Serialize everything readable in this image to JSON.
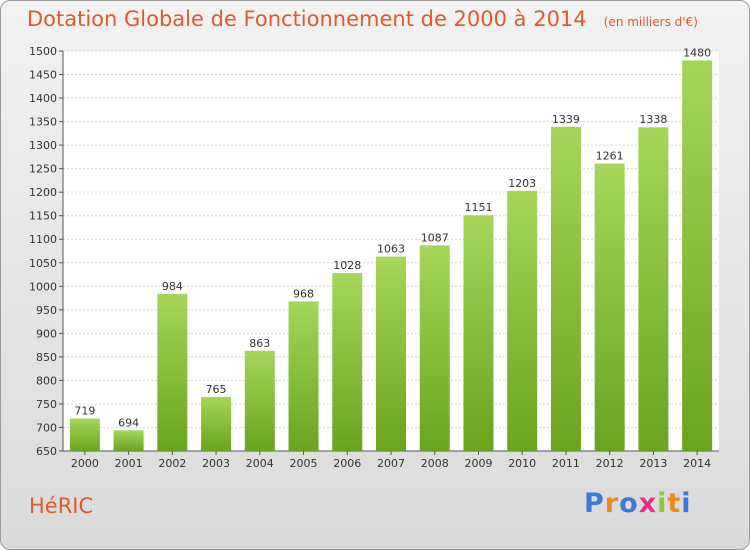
{
  "header": {
    "title": "Dotation Globale de Fonctionnement de 2000 à 2014",
    "unit_note": "(en milliers d'€)"
  },
  "footer": {
    "commune": "HéRIC",
    "logo": [
      "P",
      "r",
      "o",
      "x",
      "i",
      "t",
      "i"
    ],
    "logo_colors": [
      "#3a7bd5",
      "#f08a1a",
      "#3a7bd5",
      "#e8308a",
      "#8cc63f",
      "#f08a1a",
      "#3a7bd5"
    ]
  },
  "chart_data": {
    "type": "bar",
    "categories": [
      "2000",
      "2001",
      "2002",
      "2003",
      "2004",
      "2005",
      "2006",
      "2007",
      "2008",
      "2009",
      "2010",
      "2011",
      "2012",
      "2013",
      "2014"
    ],
    "values": [
      719,
      694,
      984,
      765,
      863,
      968,
      1028,
      1063,
      1087,
      1151,
      1203,
      1339,
      1261,
      1338,
      1480
    ],
    "ylim": [
      650,
      1500
    ],
    "yticks": [
      650,
      700,
      750,
      800,
      850,
      900,
      950,
      1000,
      1050,
      1100,
      1150,
      1200,
      1250,
      1300,
      1350,
      1400,
      1450,
      1500
    ],
    "grid": true,
    "bar_color_top": "#a5d65a",
    "bar_color_bottom": "#6aa31f"
  }
}
